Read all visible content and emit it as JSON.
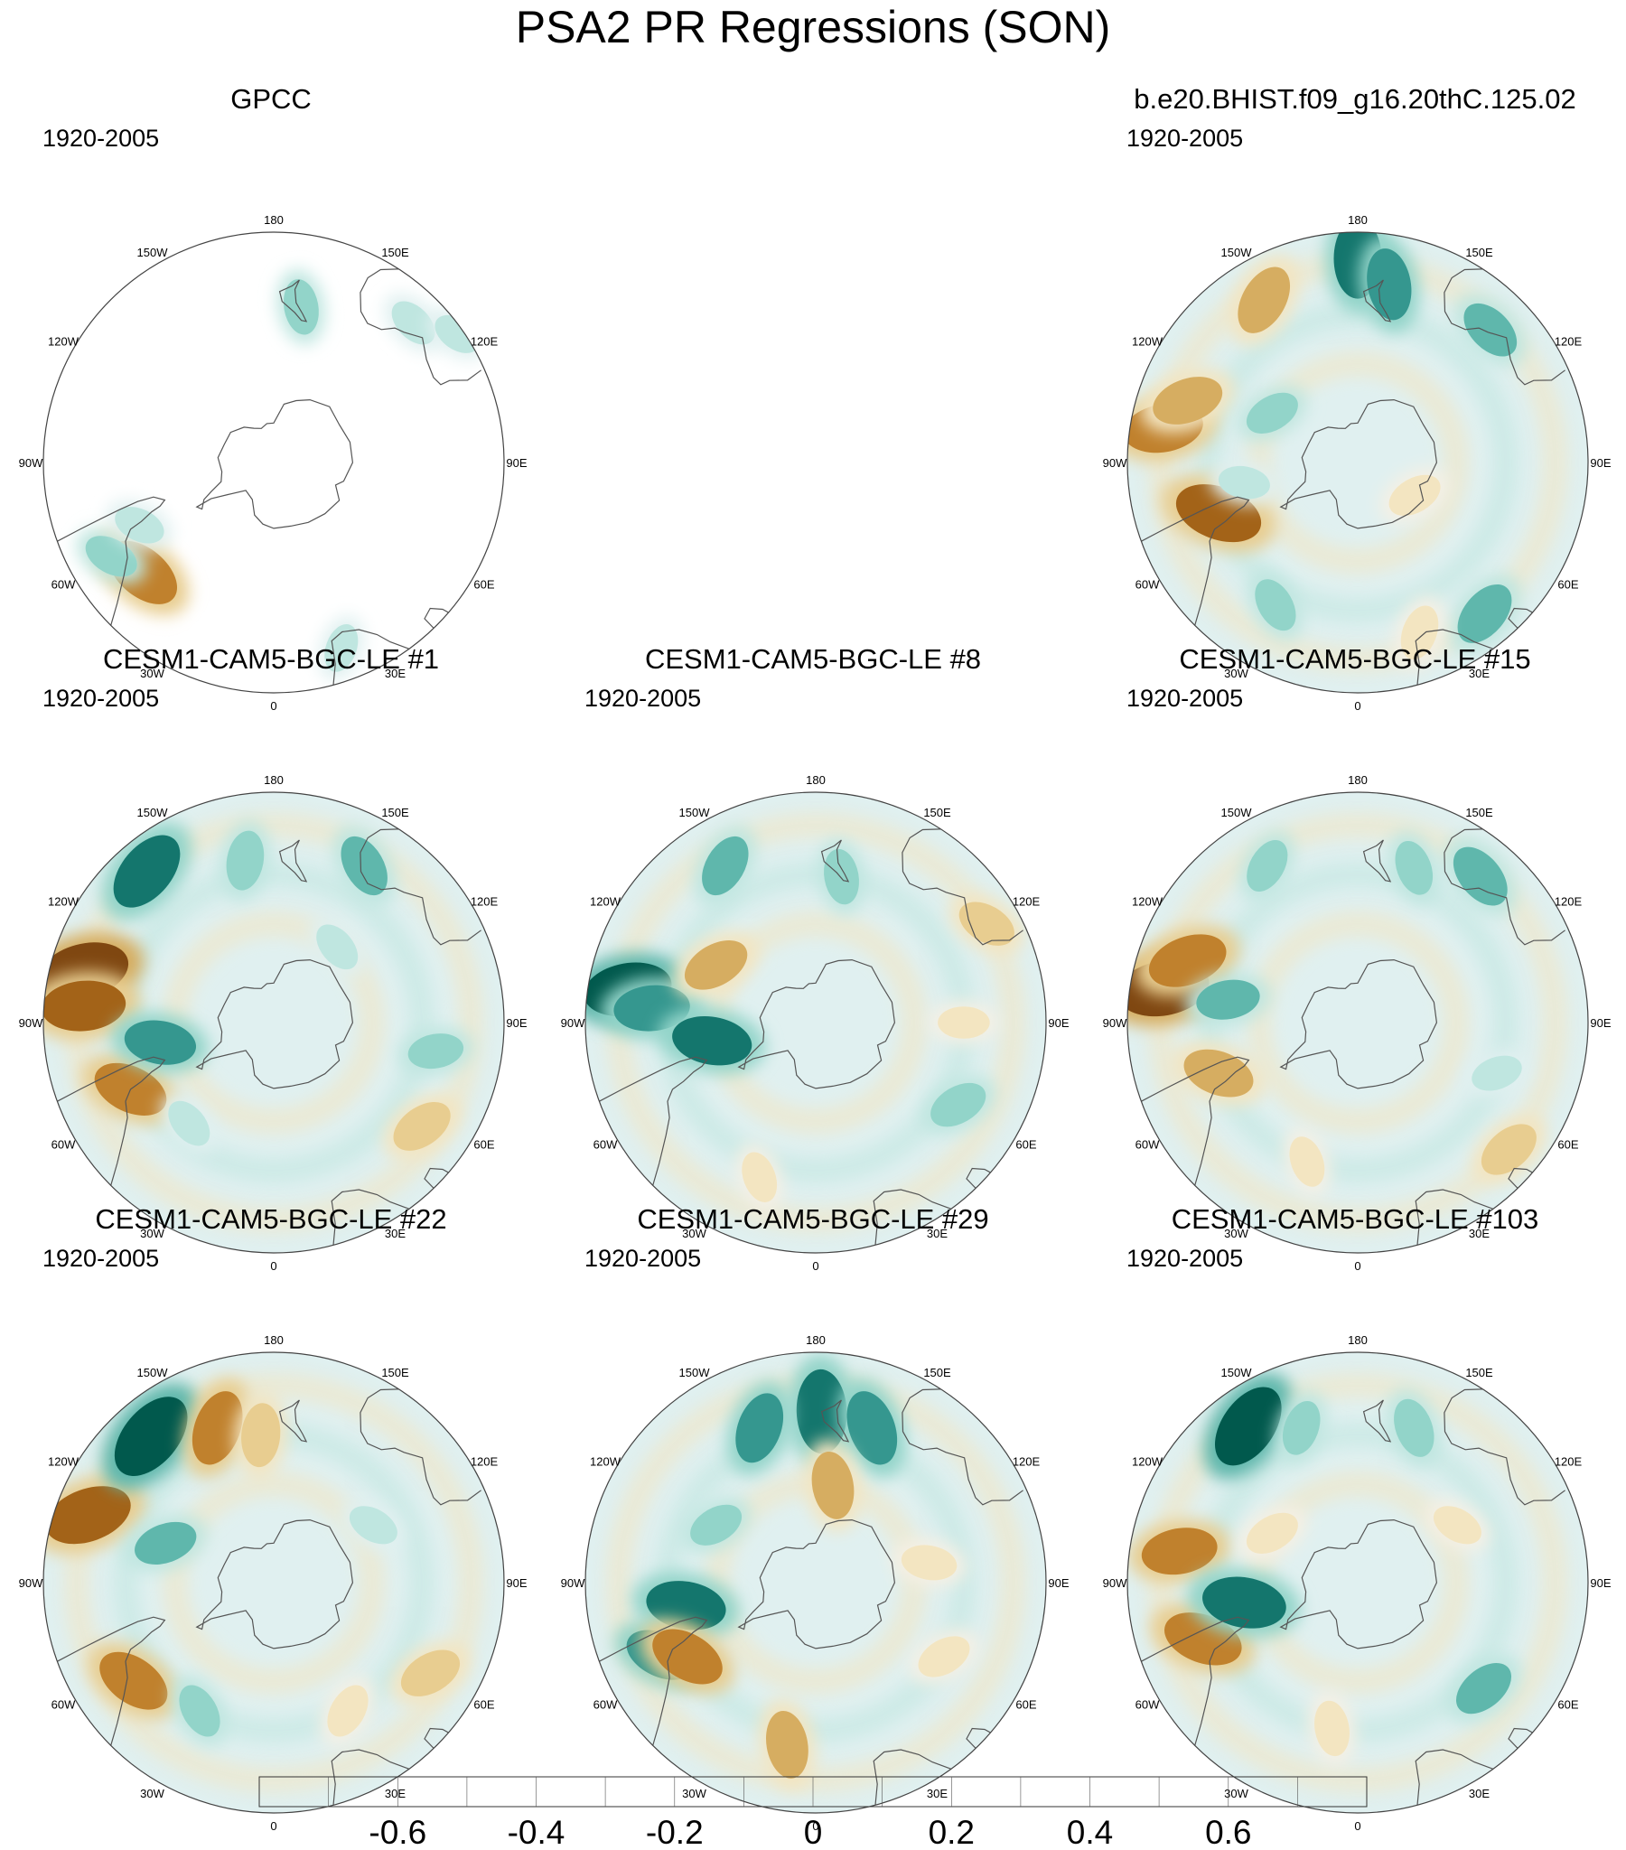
{
  "title": "PSA2 PR Regressions (SON)",
  "period": "1920-2005",
  "panels": [
    {
      "id": "gpcc",
      "title": "GPCC",
      "col": 0,
      "row": 0,
      "coverage": "land-only",
      "blobs": [
        {
          "lon": -50,
          "lat": -38,
          "value": -0.5
        },
        {
          "lon": -60,
          "lat": -33,
          "value": 0.2
        },
        {
          "lon": -65,
          "lat": -45,
          "value": 0.15
        },
        {
          "lon": 20,
          "lat": -30,
          "value": 0.12
        },
        {
          "lon": 135,
          "lat": -30,
          "value": 0.15
        },
        {
          "lon": 125,
          "lat": -22,
          "value": 0.12
        },
        {
          "lon": 170,
          "lat": -42,
          "value": 0.2
        }
      ]
    },
    {
      "id": "bhist",
      "title": "b.e20.BHIST.f09_g16.20thC.125.02",
      "col": 2,
      "row": 0,
      "coverage": "global",
      "blobs": [
        {
          "lon": -100,
          "lat": -30,
          "value": -0.5
        },
        {
          "lon": -110,
          "lat": -35,
          "value": -0.4
        },
        {
          "lon": -70,
          "lat": -45,
          "value": -0.6
        },
        {
          "lon": -150,
          "lat": -33,
          "value": -0.4
        },
        {
          "lon": 180,
          "lat": -28,
          "value": 0.5
        },
        {
          "lon": 170,
          "lat": -35,
          "value": 0.4
        },
        {
          "lon": 135,
          "lat": -33,
          "value": 0.3
        },
        {
          "lon": 40,
          "lat": -30,
          "value": 0.35
        },
        {
          "lon": -30,
          "lat": -40,
          "value": 0.2
        },
        {
          "lon": -80,
          "lat": -55,
          "value": 0.15
        },
        {
          "lon": 20,
          "lat": -35,
          "value": -0.2
        },
        {
          "lon": 60,
          "lat": -70,
          "value": -0.2
        },
        {
          "lon": -120,
          "lat": -60,
          "value": 0.2
        }
      ]
    },
    {
      "id": "le1",
      "title": "CESM1-CAM5-BGC-LE #1",
      "col": 0,
      "row": 1,
      "coverage": "global",
      "blobs": [
        {
          "lon": -105,
          "lat": -30,
          "value": -0.65
        },
        {
          "lon": -95,
          "lat": -32,
          "value": -0.55
        },
        {
          "lon": -140,
          "lat": -30,
          "value": 0.55
        },
        {
          "lon": -65,
          "lat": -42,
          "value": -0.45
        },
        {
          "lon": -80,
          "lat": -55,
          "value": 0.4
        },
        {
          "lon": 150,
          "lat": -35,
          "value": 0.3
        },
        {
          "lon": -170,
          "lat": -40,
          "value": 0.25
        },
        {
          "lon": 55,
          "lat": -35,
          "value": -0.3
        },
        {
          "lon": 80,
          "lat": -40,
          "value": 0.2
        },
        {
          "lon": -40,
          "lat": -50,
          "value": 0.15
        },
        {
          "lon": 140,
          "lat": -60,
          "value": 0.15
        }
      ]
    },
    {
      "id": "le8",
      "title": "CESM1-CAM5-BGC-LE #8",
      "col": 1,
      "row": 1,
      "coverage": "global",
      "blobs": [
        {
          "lon": -100,
          "lat": -32,
          "value": 0.6
        },
        {
          "lon": -95,
          "lat": -40,
          "value": 0.45
        },
        {
          "lon": -120,
          "lat": -55,
          "value": -0.35
        },
        {
          "lon": -150,
          "lat": -35,
          "value": 0.3
        },
        {
          "lon": 120,
          "lat": -30,
          "value": -0.25
        },
        {
          "lon": 60,
          "lat": -40,
          "value": 0.25
        },
        {
          "lon": 90,
          "lat": -45,
          "value": -0.15
        },
        {
          "lon": -20,
          "lat": -40,
          "value": -0.15
        },
        {
          "lon": -80,
          "lat": -58,
          "value": 0.5
        },
        {
          "lon": 170,
          "lat": -45,
          "value": 0.2
        }
      ]
    },
    {
      "id": "le15",
      "title": "CESM1-CAM5-BGC-LE #15",
      "col": 2,
      "row": 1,
      "coverage": "global",
      "blobs": [
        {
          "lon": -100,
          "lat": -30,
          "value": -0.65
        },
        {
          "lon": -110,
          "lat": -35,
          "value": -0.5
        },
        {
          "lon": -100,
          "lat": -50,
          "value": 0.3
        },
        {
          "lon": 140,
          "lat": -32,
          "value": 0.35
        },
        {
          "lon": 160,
          "lat": -40,
          "value": 0.2
        },
        {
          "lon": -150,
          "lat": -35,
          "value": 0.2
        },
        {
          "lon": -70,
          "lat": -45,
          "value": -0.4
        },
        {
          "lon": 50,
          "lat": -30,
          "value": -0.3
        },
        {
          "lon": -20,
          "lat": -45,
          "value": -0.15
        },
        {
          "lon": 70,
          "lat": -45,
          "value": 0.15
        }
      ]
    },
    {
      "id": "le22",
      "title": "CESM1-CAM5-BGC-LE #22",
      "col": 0,
      "row": 2,
      "coverage": "global",
      "blobs": [
        {
          "lon": -110,
          "lat": -30,
          "value": -0.6
        },
        {
          "lon": -140,
          "lat": -32,
          "value": 0.65
        },
        {
          "lon": -160,
          "lat": -40,
          "value": -0.45
        },
        {
          "lon": -175,
          "lat": -45,
          "value": -0.3
        },
        {
          "lon": -110,
          "lat": -55,
          "value": 0.3
        },
        {
          "lon": -55,
          "lat": -38,
          "value": -0.45
        },
        {
          "lon": 60,
          "lat": -35,
          "value": -0.3
        },
        {
          "lon": -30,
          "lat": -45,
          "value": 0.2
        },
        {
          "lon": 120,
          "lat": -55,
          "value": 0.15
        },
        {
          "lon": 30,
          "lat": -45,
          "value": -0.2
        }
      ]
    },
    {
      "id": "le29",
      "title": "CESM1-CAM5-BGC-LE #29",
      "col": 1,
      "row": 2,
      "coverage": "global",
      "blobs": [
        {
          "lon": 178,
          "lat": -38,
          "value": 0.55
        },
        {
          "lon": 160,
          "lat": -40,
          "value": 0.45
        },
        {
          "lon": -160,
          "lat": -40,
          "value": 0.4
        },
        {
          "lon": -80,
          "lat": -50,
          "value": 0.5
        },
        {
          "lon": -65,
          "lat": -38,
          "value": 0.4
        },
        {
          "lon": -10,
          "lat": -40,
          "value": -0.35
        },
        {
          "lon": -60,
          "lat": -45,
          "value": -0.45
        },
        {
          "lon": -120,
          "lat": -55,
          "value": 0.2
        },
        {
          "lon": 60,
          "lat": -45,
          "value": -0.2
        },
        {
          "lon": 100,
          "lat": -55,
          "value": -0.2
        },
        {
          "lon": 170,
          "lat": -60,
          "value": -0.35
        }
      ]
    },
    {
      "id": "le103",
      "title": "CESM1-CAM5-BGC-LE #103",
      "col": 2,
      "row": 2,
      "coverage": "global",
      "blobs": [
        {
          "lon": -100,
          "lat": -35,
          "value": -0.45
        },
        {
          "lon": -145,
          "lat": -32,
          "value": 0.6
        },
        {
          "lon": -70,
          "lat": -40,
          "value": -0.5
        },
        {
          "lon": -80,
          "lat": -55,
          "value": 0.55
        },
        {
          "lon": 50,
          "lat": -40,
          "value": 0.3
        },
        {
          "lon": 160,
          "lat": -40,
          "value": 0.25
        },
        {
          "lon": -160,
          "lat": -40,
          "value": 0.2
        },
        {
          "lon": -10,
          "lat": -45,
          "value": -0.2
        },
        {
          "lon": -120,
          "lat": -60,
          "value": -0.2
        },
        {
          "lon": 120,
          "lat": -55,
          "value": -0.15
        }
      ]
    }
  ],
  "lon_labels": [
    {
      "lon": 0,
      "text": "0"
    },
    {
      "lon": 30,
      "text": "30E"
    },
    {
      "lon": 60,
      "text": "60E"
    },
    {
      "lon": 90,
      "text": "90E"
    },
    {
      "lon": 120,
      "text": "120E"
    },
    {
      "lon": 150,
      "text": "150E"
    },
    {
      "lon": 180,
      "text": "180"
    },
    {
      "lon": -150,
      "text": "150W"
    },
    {
      "lon": -120,
      "text": "120W"
    },
    {
      "lon": -90,
      "text": "90W"
    },
    {
      "lon": -60,
      "text": "60W"
    },
    {
      "lon": -30,
      "text": "30W"
    }
  ],
  "colorbar": {
    "colors": [
      "#543005",
      "#7f4711",
      "#a36318",
      "#c0812d",
      "#d6ad61",
      "#e8cd90",
      "#f3e5c1",
      "#f5f0e4",
      "#e0f0f0",
      "#bfe6e0",
      "#92d4c9",
      "#5fb7ac",
      "#35978f",
      "#14766d",
      "#01594d",
      "#003c30"
    ],
    "tick_labels": [
      {
        "text": "-0.6",
        "boundary": 2
      },
      {
        "text": "-0.4",
        "boundary": 4
      },
      {
        "text": "-0.2",
        "boundary": 6
      },
      {
        "text": "0",
        "boundary": 8
      },
      {
        "text": "0.2",
        "boundary": 10
      },
      {
        "text": "0.4",
        "boundary": 12
      },
      {
        "text": "0.6",
        "boundary": 14
      }
    ],
    "levels": [
      -0.7,
      -0.6,
      -0.5,
      -0.4,
      -0.3,
      -0.2,
      -0.1,
      0,
      0.1,
      0.2,
      0.3,
      0.4,
      0.5,
      0.6,
      0.7
    ]
  }
}
